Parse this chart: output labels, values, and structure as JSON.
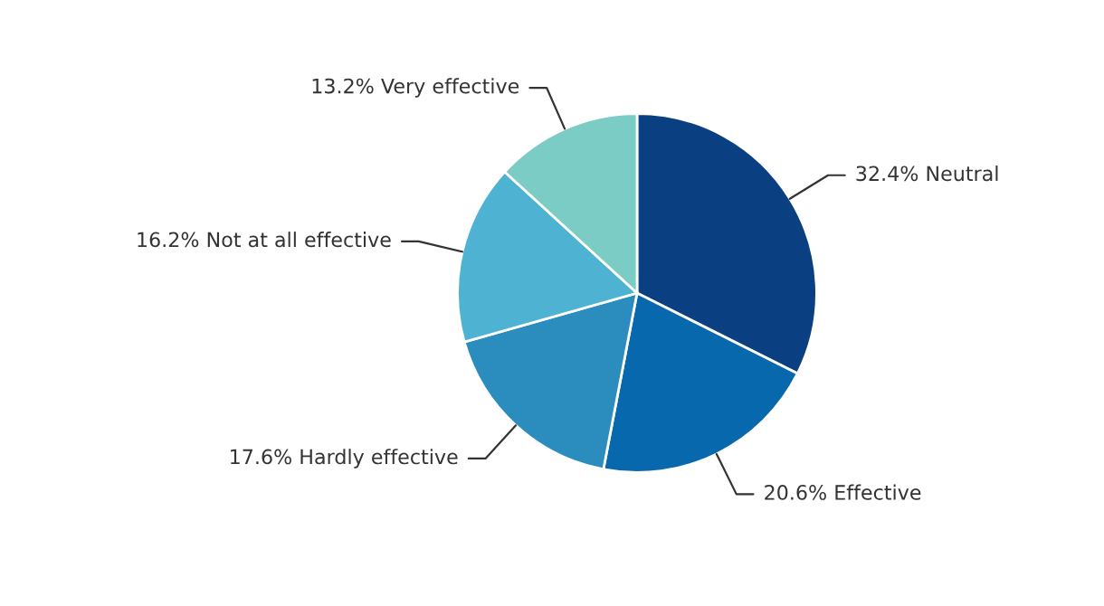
{
  "chart_data": {
    "type": "pie",
    "categories": [
      "Neutral",
      "Effective",
      "Hardly effective",
      "Not at all effective",
      "Very effective"
    ],
    "values": [
      32.4,
      20.6,
      17.6,
      16.2,
      13.2
    ],
    "value_labels": [
      "32.4%",
      "20.6%",
      "17.6%",
      "16.2%",
      "13.2%"
    ],
    "colors": [
      "#0a3f82",
      "#0868ad",
      "#2b8cbe",
      "#4eb3d3",
      "#7bccc4"
    ],
    "legend": false
  }
}
